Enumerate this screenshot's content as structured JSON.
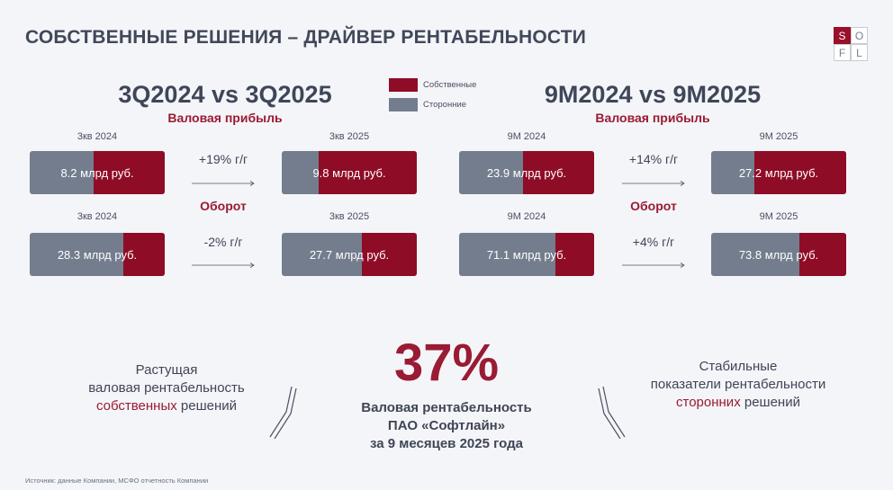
{
  "title": "СОБСТВЕННЫЕ РЕШЕНИЯ – ДРАЙВЕР РЕНТАБЕЛЬНОСТИ",
  "logo": {
    "letters": [
      "S",
      "O",
      "F",
      "L"
    ]
  },
  "legend": {
    "own": {
      "label": "Собственные",
      "color": "#8f0c26"
    },
    "third": {
      "label": "Сторонние",
      "color": "#737d8d"
    }
  },
  "left": {
    "heading": "3Q2024 vs 3Q2025",
    "gross_profit": {
      "label": "Валовая прибыль",
      "growth": "+19% г/г",
      "from": {
        "period": "3кв 2024",
        "value": "8.2 млрд руб.",
        "own_share": 0.53
      },
      "to": {
        "period": "3кв 2025",
        "value": "9.8 млрд руб.",
        "own_share": 0.73
      }
    },
    "turnover": {
      "label": "Оборот",
      "growth": "-2% г/г",
      "from": {
        "period": "3кв 2024",
        "value": "28.3 млрд руб.",
        "own_share": 0.31
      },
      "to": {
        "period": "3кв 2025",
        "value": "27.7 млрд руб.",
        "own_share": 0.41
      }
    }
  },
  "right": {
    "heading": "9M2024 vs 9M2025",
    "gross_profit": {
      "label": "Валовая прибыль",
      "growth": "+14% г/г",
      "from": {
        "period": "9М 2024",
        "value": "23.9 млрд руб.",
        "own_share": 0.53
      },
      "to": {
        "period": "9М 2025",
        "value": "27.2 млрд руб.",
        "own_share": 0.68
      }
    },
    "turnover": {
      "label": "Оборот",
      "growth": "+4% г/г",
      "from": {
        "period": "9М 2024",
        "value": "71.1 млрд руб.",
        "own_share": 0.29
      },
      "to": {
        "period": "9М 2025",
        "value": "73.8 млрд руб.",
        "own_share": 0.35
      }
    }
  },
  "highlight": {
    "value": "37%",
    "caption_line1": "Валовая рентабельность",
    "caption_line2": "ПАО «Софтлайн»",
    "caption_line3": "за 9 месяцев 2025 года"
  },
  "left_note": {
    "line1": "Растущая",
    "line2": "валовая рентабельность",
    "line3_accent": "собственных",
    "line3_rest": " решений"
  },
  "right_note": {
    "line1": "Стабильные",
    "line2": "показатели рентабельности",
    "line3_accent": "сторонних",
    "line3_rest": " решений"
  },
  "source": "Источник: данные Компании, МСФО отчетность Компании"
}
